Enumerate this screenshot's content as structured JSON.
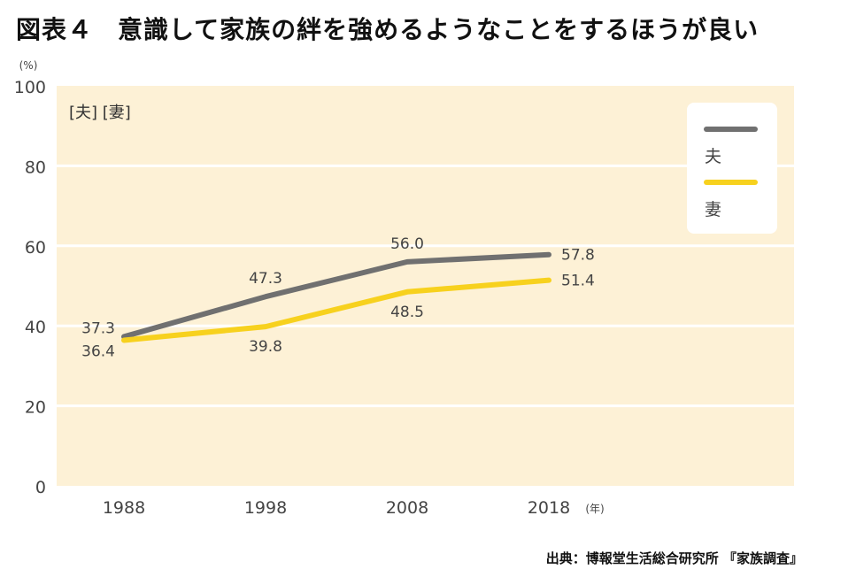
{
  "title": {
    "prefix": "図表４",
    "text": "意識して家族の絆を強めるようなことをするほうが良い"
  },
  "source": "出典：博報堂生活総合研究所 『家族調査』",
  "chart_data": {
    "type": "line",
    "title": "図表４ 意識して家族の絆を強めるようなことをするほうが良い",
    "subtitle": "[夫] [妻]",
    "xlabel": "(年)",
    "ylabel": "(%)",
    "x": [
      "1988",
      "1998",
      "2008",
      "2018"
    ],
    "ylim": [
      0,
      100
    ],
    "yticks": [
      0,
      20,
      40,
      60,
      80,
      100
    ],
    "grid": true,
    "legend_position": "top-right",
    "series": [
      {
        "name": "夫",
        "color": "#707070",
        "values": [
          37.3,
          47.3,
          56.0,
          57.8
        ],
        "labels": [
          "37.3",
          "47.3",
          "56.0",
          "57.8"
        ]
      },
      {
        "name": "妻",
        "color": "#F7D11E",
        "values": [
          36.4,
          39.8,
          48.5,
          51.4
        ],
        "labels": [
          "36.4",
          "39.8",
          "48.5",
          "51.4"
        ]
      }
    ],
    "background_color": "#FDF1D6"
  }
}
